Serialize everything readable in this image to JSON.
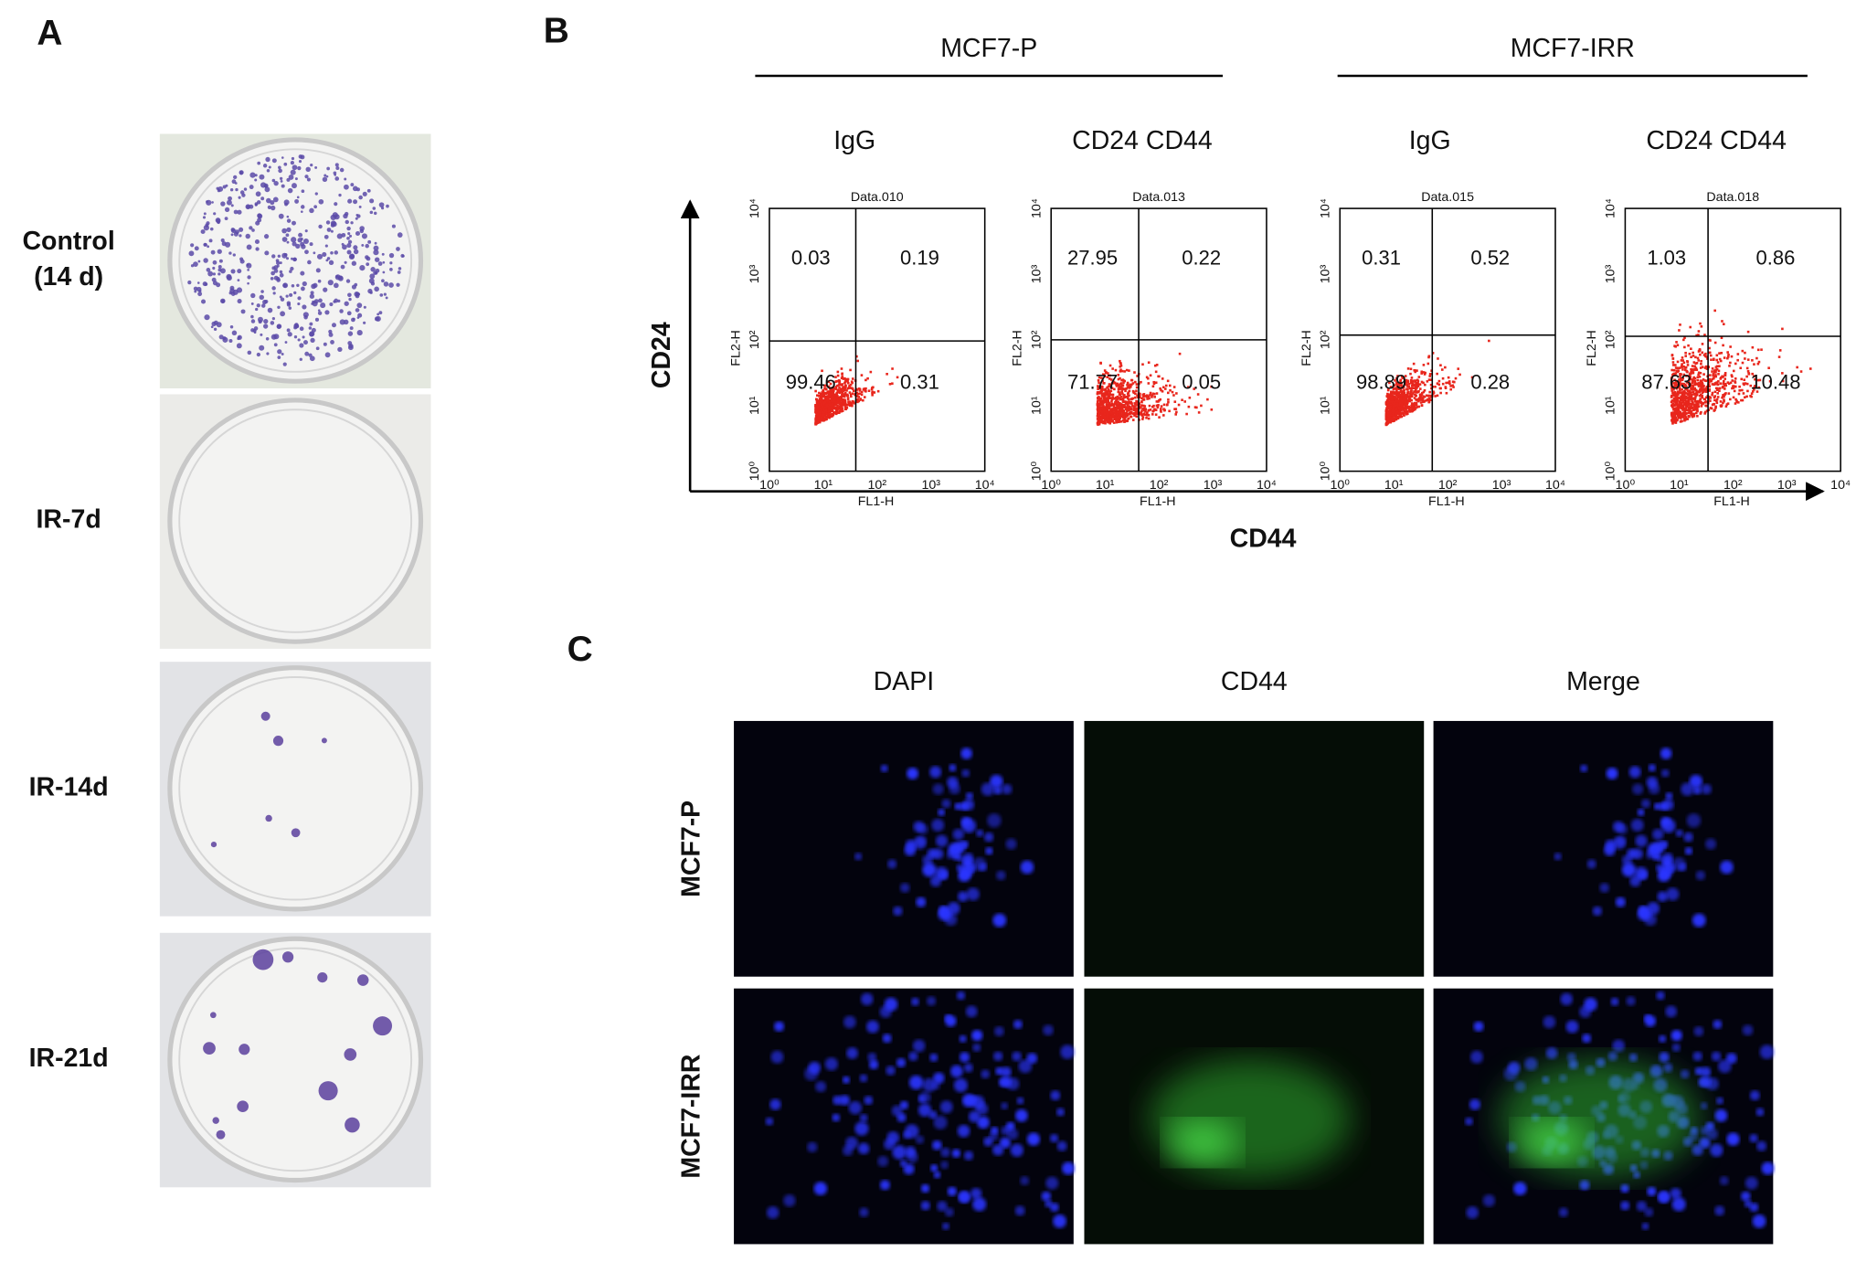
{
  "panel_a": {
    "label": "A",
    "rows": [
      {
        "label": [
          "Control",
          "(14 d)"
        ]
      },
      {
        "label": [
          "IR-7d"
        ]
      },
      {
        "label": [
          "IR-14d"
        ]
      },
      {
        "label": [
          "IR-21d"
        ]
      }
    ]
  },
  "panel_b": {
    "label": "B",
    "x_axis_label": "CD44",
    "y_axis_label": "CD24",
    "groups": [
      {
        "name": "MCF7-P"
      },
      {
        "name": "MCF7-IRR"
      }
    ],
    "x_channel": "FL1-H",
    "y_channel": "FL2-H",
    "ticks": [
      "10⁰",
      "10¹",
      "10²",
      "10³",
      "10⁴"
    ],
    "plots": [
      {
        "header": "IgG",
        "title": "Data.010",
        "quadrants": {
          "upper_left": 0.03,
          "upper_right": 0.19,
          "lower_left": 99.46,
          "lower_right": 0.31
        }
      },
      {
        "header": "CD24  CD44",
        "title": "Data.013",
        "quadrants": {
          "upper_left": 27.95,
          "upper_right": 0.22,
          "lower_left": 71.77,
          "lower_right": 0.05
        }
      },
      {
        "header": "IgG",
        "title": "Data.015",
        "quadrants": {
          "upper_left": 0.31,
          "upper_right": 0.52,
          "lower_left": 98.89,
          "lower_right": 0.28
        }
      },
      {
        "header": "CD24  CD44",
        "title": "Data.018",
        "quadrants": {
          "upper_left": 1.03,
          "upper_right": 0.86,
          "lower_left": 87.63,
          "lower_right": 10.48
        }
      }
    ]
  },
  "panel_c": {
    "label": "C",
    "columns": [
      "DAPI",
      "CD44",
      "Merge"
    ],
    "rows": [
      "MCF7-P",
      "MCF7-IRR"
    ]
  }
}
